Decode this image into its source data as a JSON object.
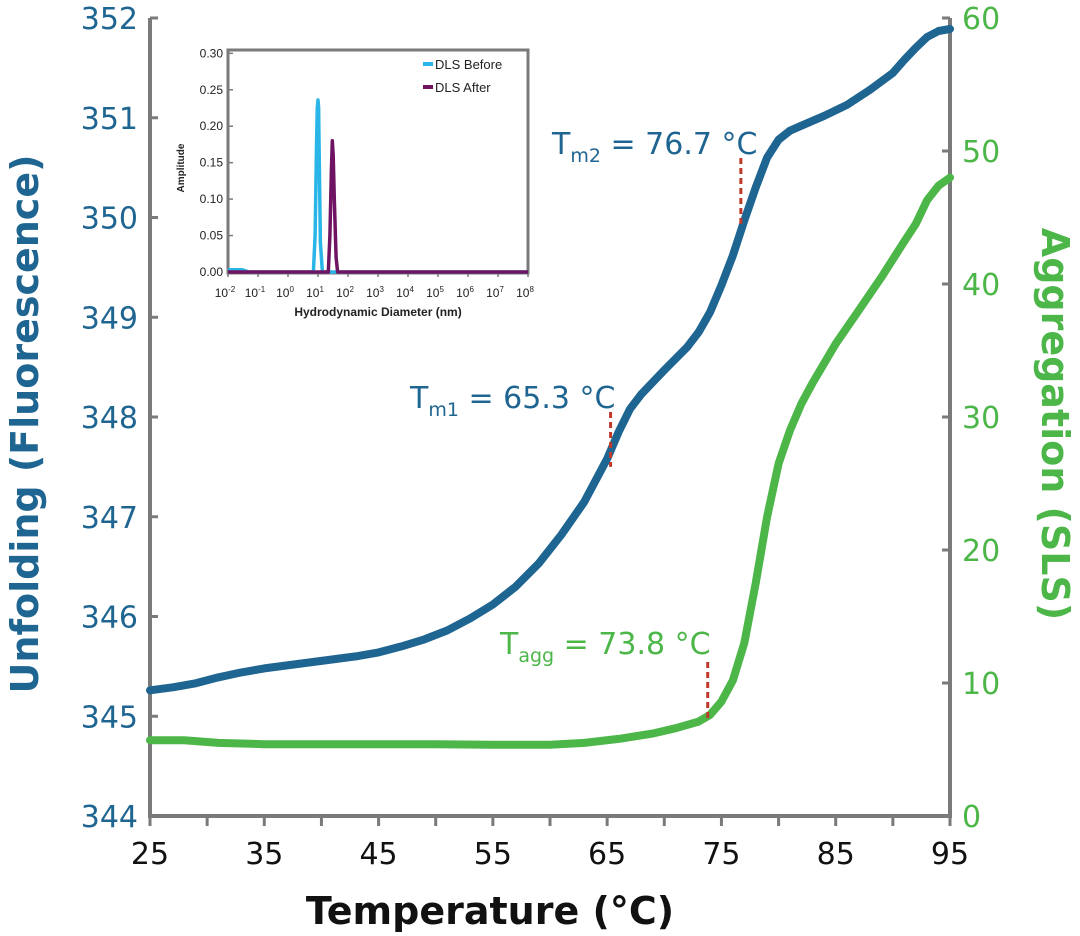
{
  "chart_data": [
    {
      "type": "line",
      "title": "",
      "xlabel": "Temperature (°C)",
      "ylabel_left": "Unfolding (Fluorescence)",
      "ylabel_right": "Aggregation (SLS)",
      "xlim": [
        25,
        95
      ],
      "ylim_left": [
        344,
        352
      ],
      "ylim_right": [
        0,
        60
      ],
      "x_ticks": [
        "25",
        "35",
        "45",
        "55",
        "65",
        "75",
        "85",
        "95"
      ],
      "y_left_ticks": [
        "344",
        "345",
        "346",
        "347",
        "348",
        "349",
        "350",
        "351",
        "352"
      ],
      "y_right_ticks": [
        "0",
        "10",
        "20",
        "30",
        "40",
        "50",
        "60"
      ],
      "grid": false,
      "colors": {
        "unfolding": "#1f6591",
        "aggregation": "#4cb648",
        "marker": "#c0392b"
      },
      "series": [
        {
          "axis": "left",
          "x": [
            25,
            27,
            29,
            31,
            33,
            35,
            37,
            39,
            41,
            43,
            45,
            47,
            49,
            51,
            53,
            55,
            57,
            59,
            61,
            63,
            65,
            66,
            67,
            68,
            70,
            72,
            73,
            74,
            75,
            76,
            77,
            78,
            79,
            80,
            81,
            82,
            84,
            86,
            88,
            90,
            91,
            92,
            93,
            94,
            95
          ],
          "values": [
            345.26,
            345.29,
            345.33,
            345.39,
            345.44,
            345.48,
            345.51,
            345.54,
            345.57,
            345.6,
            345.64,
            345.7,
            345.77,
            345.86,
            345.98,
            346.12,
            346.3,
            346.53,
            346.82,
            347.15,
            347.58,
            347.85,
            348.08,
            348.23,
            348.47,
            348.7,
            348.85,
            349.05,
            349.32,
            349.62,
            349.97,
            350.3,
            350.6,
            350.78,
            350.87,
            350.92,
            351.02,
            351.13,
            351.28,
            351.45,
            351.58,
            351.7,
            351.81,
            351.87,
            351.89
          ]
        },
        {
          "axis": "right",
          "x": [
            25,
            28,
            31,
            35,
            40,
            45,
            50,
            55,
            60,
            63,
            66,
            69,
            71,
            73,
            74,
            75,
            76,
            77,
            78,
            79,
            80,
            81,
            82,
            83,
            85,
            87,
            89,
            91,
            92,
            93,
            94,
            95
          ],
          "values": [
            5.7,
            5.7,
            5.5,
            5.4,
            5.4,
            5.4,
            5.4,
            5.35,
            5.35,
            5.5,
            5.8,
            6.2,
            6.6,
            7.1,
            7.6,
            8.6,
            10.2,
            13.0,
            17.5,
            22.5,
            26.5,
            29.0,
            31.0,
            32.6,
            35.5,
            38.0,
            40.5,
            43.2,
            44.5,
            46.3,
            47.4,
            48.0
          ]
        }
      ],
      "annotations": [
        {
          "label_main": "T",
          "label_sub": "m2",
          "label_value": " = 76.7 °C",
          "x": 76.7,
          "series": "left",
          "y_at_marker": 349.9
        },
        {
          "label_main": "T",
          "label_sub": "m1",
          "label_value": " = 65.3 °C",
          "x": 65.3,
          "series": "left",
          "y_at_marker": 347.5
        },
        {
          "label_main": "T",
          "label_sub": "agg",
          "label_value": " = 73.8 °C",
          "x": 73.8,
          "series": "right",
          "y_at_marker": 7.3
        }
      ]
    },
    {
      "type": "line",
      "title": "",
      "xlabel": "Hydrodynamic Diameter (nm)",
      "ylabel": "Amplitude",
      "x_scale": "log",
      "xlim": [
        0.01,
        100000000
      ],
      "ylim": [
        0,
        0.3
      ],
      "x_tick_bases": [
        "10",
        "10",
        "10",
        "10",
        "10",
        "10",
        "10",
        "10",
        "10",
        "10",
        "10"
      ],
      "x_tick_exps": [
        "-2",
        "-1",
        "0",
        "1",
        "2",
        "3",
        "4",
        "5",
        "6",
        "7",
        "8"
      ],
      "y_ticks": [
        "0.00",
        "0.05",
        "0.10",
        "0.15",
        "0.20",
        "0.25",
        "0.30"
      ],
      "legend_position": "top-right",
      "series": [
        {
          "name": "DLS Before",
          "color": "#29b5e8",
          "x": [
            0.01,
            0.03,
            0.05,
            7,
            8,
            9,
            9.5,
            10,
            10.5,
            11,
            12,
            14,
            100000000
          ],
          "values": [
            0.003,
            0.003,
            0.0,
            0.0,
            0.05,
            0.18,
            0.226,
            0.236,
            0.226,
            0.16,
            0.04,
            0.0,
            0.0
          ]
        },
        {
          "name": "DLS After",
          "color": "#6e1462",
          "x": [
            0.01,
            22,
            25,
            28,
            30,
            32,
            35,
            40,
            45,
            100000000
          ],
          "values": [
            0.0,
            0.0,
            0.05,
            0.14,
            0.18,
            0.16,
            0.1,
            0.02,
            0.0,
            0.0
          ]
        }
      ]
    }
  ]
}
